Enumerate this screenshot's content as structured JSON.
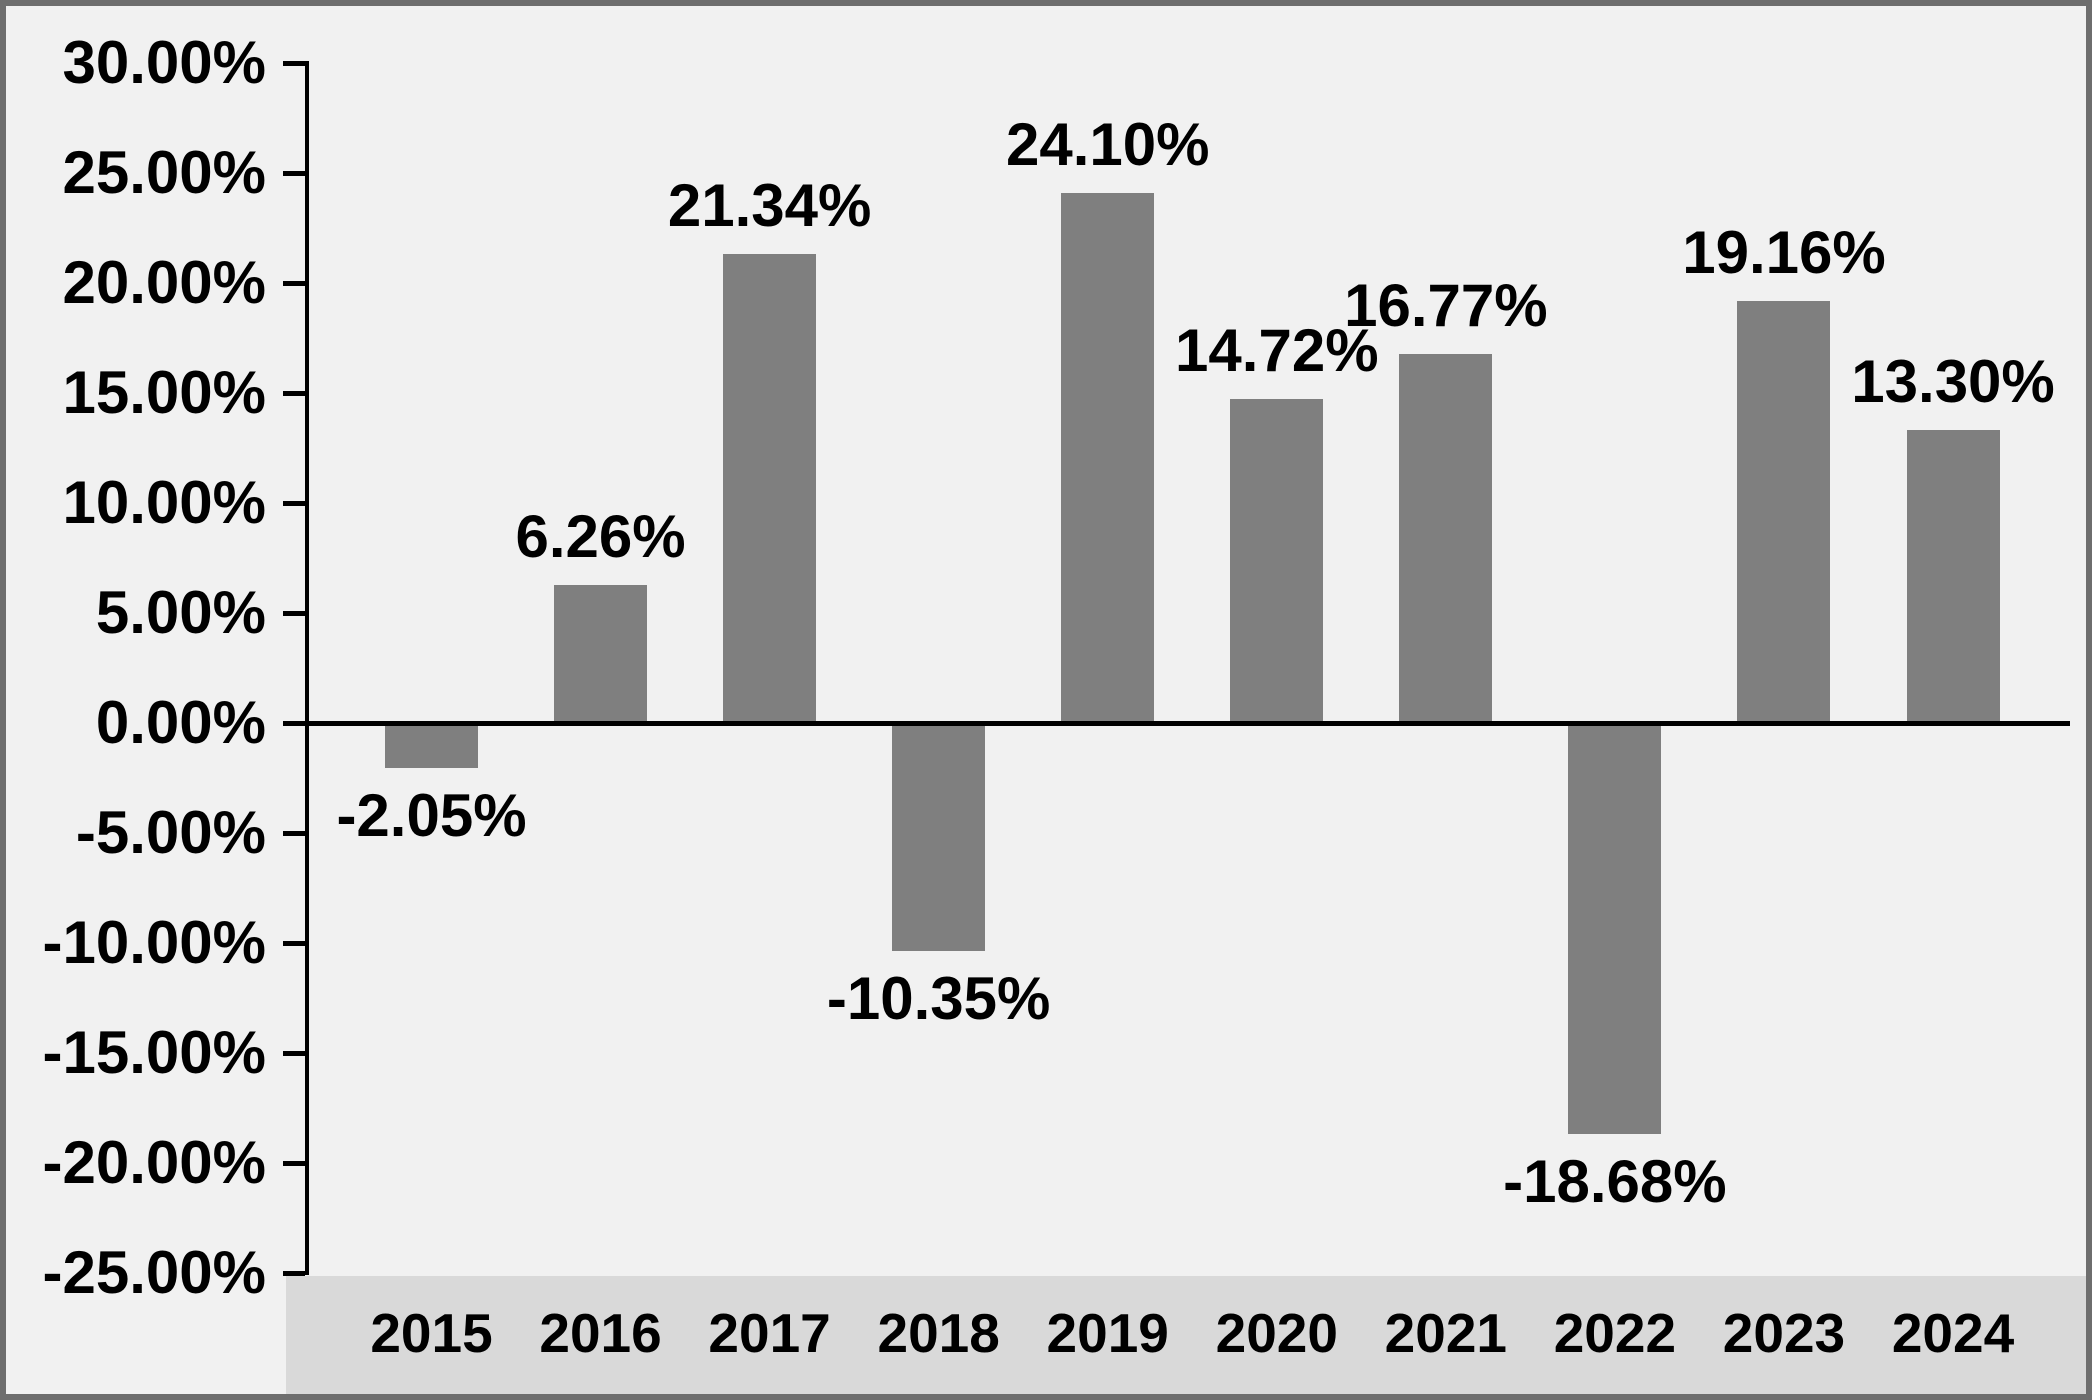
{
  "chart_data": {
    "type": "bar",
    "title": "",
    "xlabel": "",
    "ylabel": "",
    "categories": [
      "2015",
      "2016",
      "2017",
      "2018",
      "2019",
      "2020",
      "2021",
      "2022",
      "2023",
      "2024"
    ],
    "values": [
      -2.05,
      6.26,
      21.34,
      -10.35,
      24.1,
      14.72,
      16.77,
      -18.68,
      19.16,
      13.3
    ],
    "value_labels": [
      "-2.05%",
      "6.26%",
      "21.34%",
      "-10.35%",
      "24.10%",
      "14.72%",
      "16.77%",
      "-18.68%",
      "19.16%",
      "13.30%"
    ],
    "ylim": [
      -25,
      30
    ],
    "ytick_step": 5,
    "ytick_labels": [
      "30.00%",
      "25.00%",
      "20.00%",
      "15.00%",
      "10.00%",
      "5.00%",
      "0.00%",
      "-5.00%",
      "-10.00%",
      "-15.00%",
      "-20.00%",
      "-25.00%"
    ],
    "grid": false,
    "legend": "none",
    "data_label_position": "outside-end"
  },
  "colors": {
    "bar": "#7f7f7f",
    "plot_background": "#f1f1f1",
    "x_band_background": "#d9d9d9",
    "frame_border": "#6e6e6e",
    "axis_line": "#000000",
    "text": "#000000"
  }
}
